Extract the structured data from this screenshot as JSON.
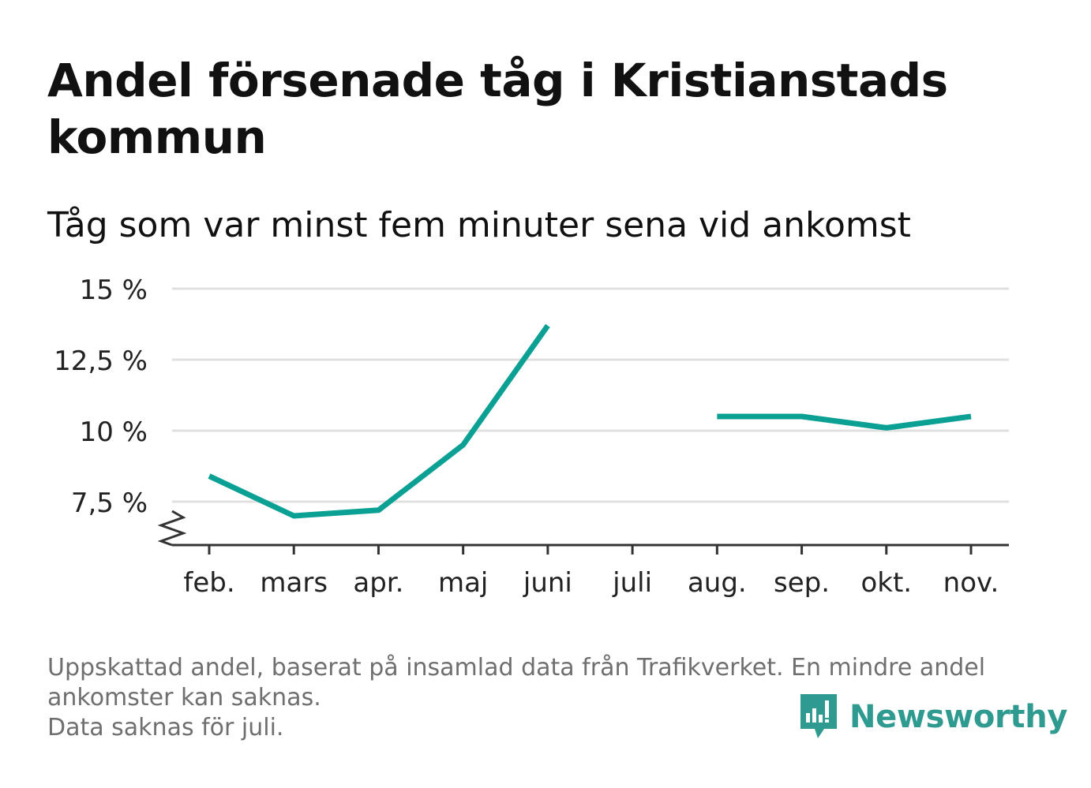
{
  "title": "Andel försenade tåg i Kristianstads kommun",
  "subtitle": "Tåg som var minst fem minuter sena vid ankomst",
  "colors": {
    "line": "#0aa194",
    "grid": "#e0e0e0",
    "axis": "#333333",
    "brand": "#2f9b90"
  },
  "chart_data": {
    "type": "line",
    "categories": [
      "feb.",
      "mars",
      "apr.",
      "maj",
      "juni",
      "juli",
      "aug.",
      "sep.",
      "okt.",
      "nov."
    ],
    "series": [
      {
        "values": [
          8.4,
          7.0,
          7.2,
          9.5,
          13.7,
          null,
          10.5,
          10.5,
          10.1,
          10.5
        ]
      }
    ],
    "yticks": [
      7.5,
      10,
      12.5,
      15
    ],
    "ytick_labels": [
      "7,5 %",
      "10 %",
      "12,5 %",
      "15 %"
    ],
    "ylim": [
      6,
      15
    ],
    "axis_break": true,
    "grid": true,
    "legend": "none"
  },
  "footer": {
    "note_line1": "Uppskattad andel, baserat på insamlad data från Trafikverket. En mindre andel",
    "note_line2": "ankomster kan saknas.",
    "note_line3": "Data saknas för juli."
  },
  "brand": {
    "name": "Newsworthy",
    "icon": "newsworthy-logo-icon"
  }
}
